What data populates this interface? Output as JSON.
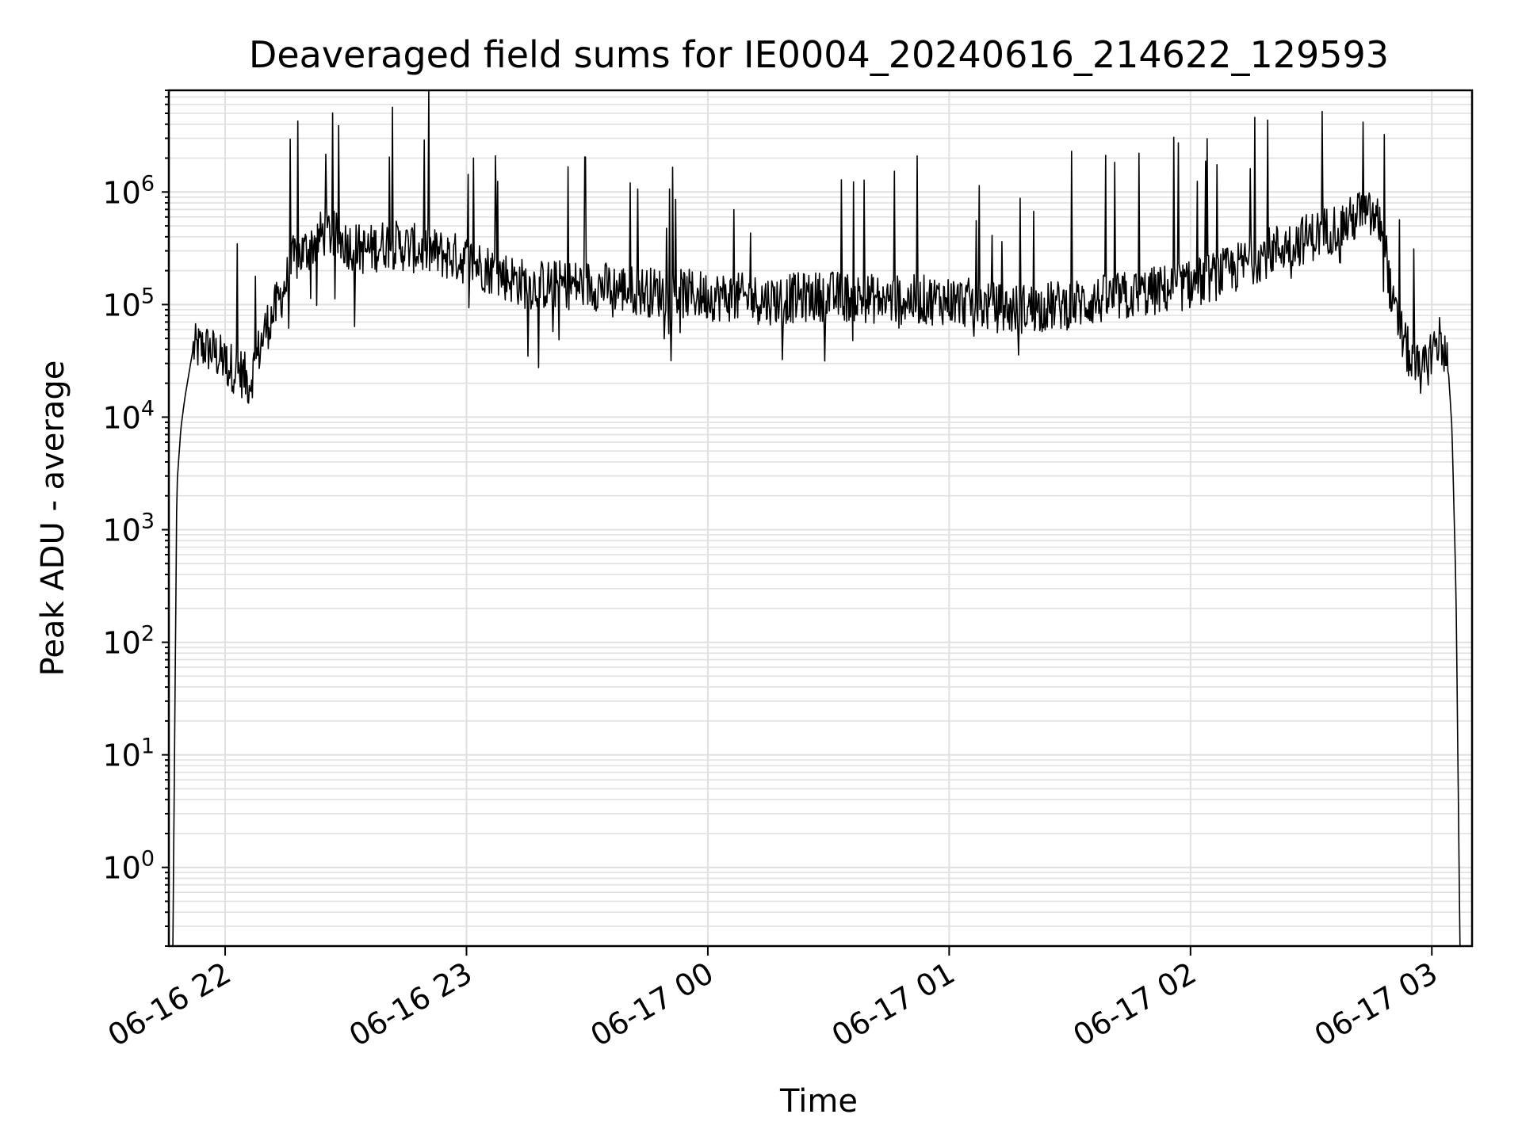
{
  "chart_data": {
    "type": "line",
    "title": "Deaveraged field sums for IE0004_20240616_214622_129593",
    "xlabel": "Time",
    "ylabel": "Peak ADU - average",
    "yscale": "log",
    "grid": true,
    "x_ticks": [
      "06-16 22",
      "06-16 23",
      "06-17 00",
      "06-17 01",
      "06-17 02",
      "06-17 03"
    ],
    "y_ticks": [
      {
        "base": "10",
        "exp": "0"
      },
      {
        "base": "10",
        "exp": "1"
      },
      {
        "base": "10",
        "exp": "2"
      },
      {
        "base": "10",
        "exp": "3"
      },
      {
        "base": "10",
        "exp": "4"
      },
      {
        "base": "10",
        "exp": "5"
      },
      {
        "base": "10",
        "exp": "6"
      }
    ],
    "xlim": [
      "2024-06-16 21:46",
      "2024-06-17 03:10"
    ],
    "ylim": [
      0.2,
      8000000
    ],
    "line_color": "#000000",
    "grid_color": "#e0e0e0",
    "series": [
      {
        "x": [
          "2024-06-16 21:47",
          "2024-06-16 21:48",
          "2024-06-16 21:49",
          "2024-06-16 21:50",
          "2024-06-16 21:52",
          "2024-06-16 21:55",
          "2024-06-16 21:57",
          "2024-06-16 22:00",
          "2024-06-16 22:04",
          "2024-06-16 22:06",
          "2024-06-16 22:08",
          "2024-06-16 22:10",
          "2024-06-16 22:13",
          "2024-06-16 22:15",
          "2024-06-16 22:17",
          "2024-06-16 22:20",
          "2024-06-16 22:25",
          "2024-06-16 22:30",
          "2024-06-16 22:35",
          "2024-06-16 22:40",
          "2024-06-16 22:50",
          "2024-06-16 23:00",
          "2024-06-16 23:15",
          "2024-06-16 23:30",
          "2024-06-16 23:45",
          "2024-06-17 00:00",
          "2024-06-17 00:15",
          "2024-06-17 00:30",
          "2024-06-17 00:45",
          "2024-06-17 01:00",
          "2024-06-17 01:15",
          "2024-06-17 01:30",
          "2024-06-17 01:45",
          "2024-06-17 02:00",
          "2024-06-17 02:10",
          "2024-06-17 02:20",
          "2024-06-17 02:30",
          "2024-06-17 02:40",
          "2024-06-17 02:42",
          "2024-06-17 02:45",
          "2024-06-17 02:48",
          "2024-06-17 02:50",
          "2024-06-17 02:55",
          "2024-06-17 02:58",
          "2024-06-17 03:00",
          "2024-06-17 03:02",
          "2024-06-17 03:03",
          "2024-06-17 03:04",
          "2024-06-17 03:05",
          "2024-06-17 03:06",
          "2024-06-17 03:07"
        ],
        "y": [
          0.2,
          2500,
          8000,
          15000,
          40000,
          42000,
          38000,
          30000,
          25000,
          20000,
          35000,
          60000,
          100000,
          150000,
          250000,
          300000,
          450000,
          350000,
          300000,
          350000,
          300000,
          250000,
          150000,
          150000,
          130000,
          120000,
          110000,
          120000,
          110000,
          110000,
          90000,
          100000,
          120000,
          150000,
          200000,
          300000,
          400000,
          550000,
          650000,
          600000,
          500000,
          100000,
          30000,
          25000,
          40000,
          50000,
          40000,
          30000,
          8000,
          300,
          0.2
        ]
      }
    ]
  }
}
